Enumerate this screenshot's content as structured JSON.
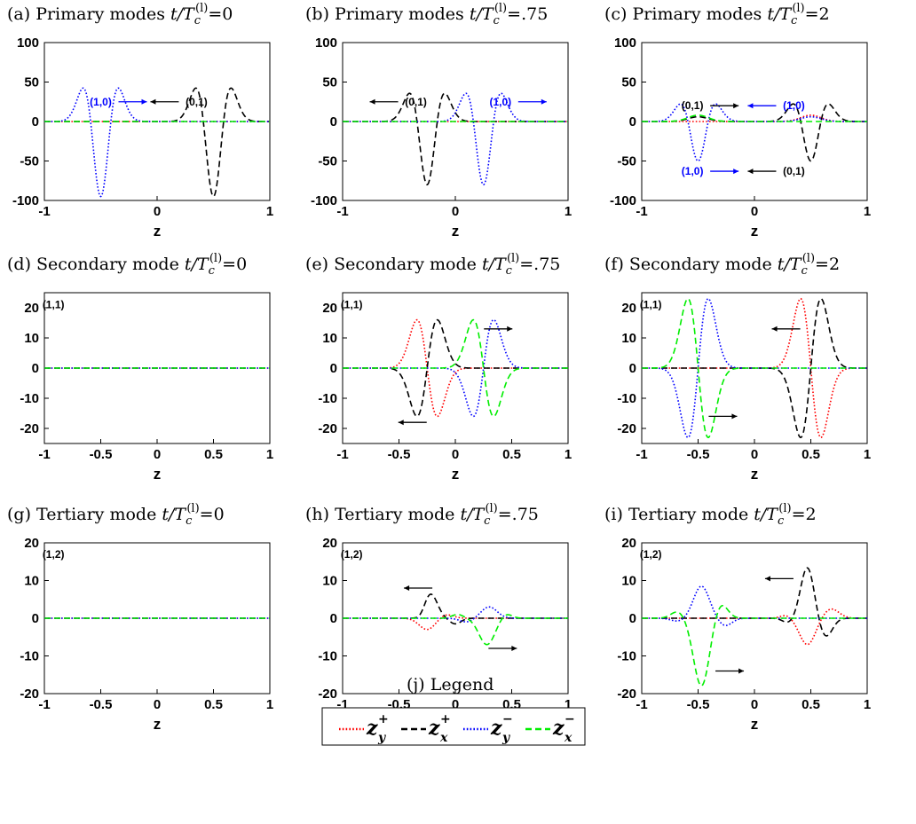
{
  "figure": {
    "legend_title": "(j) Legend"
  },
  "legend": {
    "entries": [
      {
        "symbol": "z",
        "sup": "+",
        "sub": "y",
        "color": "#ff0000",
        "dash": "dotted"
      },
      {
        "symbol": "z",
        "sup": "+",
        "sub": "x",
        "color": "#000000",
        "dash": "dashed"
      },
      {
        "symbol": "z",
        "sup": "−",
        "sub": "y",
        "color": "#0000ff",
        "dash": "dotted"
      },
      {
        "symbol": "z",
        "sup": "−",
        "sub": "x",
        "color": "#00ee00",
        "dash": "dashed"
      }
    ]
  },
  "chart_data": [
    {
      "type": "line",
      "panel": "a",
      "title_prefix": "(a) Primary modes ",
      "title_suffix": "0",
      "xlabel": "z",
      "xlim": [
        -1,
        1
      ],
      "ylim": [
        -100,
        100
      ],
      "xticks": [
        -1,
        0,
        1
      ],
      "xtick_labels": [
        "-1",
        "0",
        "1"
      ],
      "yticks": [
        -100,
        -50,
        0,
        50,
        100
      ],
      "ytick_labels": [
        "-100",
        "-50",
        "0",
        "50",
        "100"
      ],
      "annotations": [
        {
          "text": "(1,0)",
          "x": -0.5,
          "y": 25,
          "color": "#0000ff",
          "arrow": "right"
        },
        {
          "text": "(0,1)",
          "x": 0.35,
          "y": 25,
          "color": "#000000",
          "arrow": "left"
        }
      ],
      "series": [
        {
          "key": "zy_plus",
          "waves": []
        },
        {
          "key": "zx_plus",
          "waves": [
            {
              "center": 0.5,
              "amp": -95,
              "sigma": 0.09,
              "osc": 1
            }
          ]
        },
        {
          "key": "zy_minus",
          "waves": [
            {
              "center": -0.5,
              "amp": -95,
              "sigma": 0.09,
              "osc": 1
            }
          ]
        },
        {
          "key": "zx_minus",
          "waves": []
        }
      ]
    },
    {
      "type": "line",
      "panel": "b",
      "title_prefix": "(b) Primary modes ",
      "title_suffix": ".75",
      "xlabel": "z",
      "xlim": [
        -1,
        1
      ],
      "ylim": [
        -100,
        100
      ],
      "xticks": [
        -1,
        0,
        1
      ],
      "xtick_labels": [
        "-1",
        "0",
        "1"
      ],
      "yticks": [
        -100,
        -50,
        0,
        50,
        100
      ],
      "ytick_labels": [
        "-100",
        "-50",
        "0",
        "50",
        "100"
      ],
      "annotations": [
        {
          "text": "(0,1)",
          "x": -0.35,
          "y": 25,
          "color": "#000000",
          "arrow": "left"
        },
        {
          "text": "(1,0)",
          "x": 0.4,
          "y": 25,
          "color": "#0000ff",
          "arrow": "right"
        }
      ],
      "series": [
        {
          "key": "zy_plus",
          "waves": []
        },
        {
          "key": "zx_plus",
          "waves": [
            {
              "center": -0.25,
              "amp": -80,
              "sigma": 0.09,
              "osc": 1
            }
          ]
        },
        {
          "key": "zy_minus",
          "waves": [
            {
              "center": 0.25,
              "amp": -80,
              "sigma": 0.09,
              "osc": 1
            }
          ]
        },
        {
          "key": "zx_minus",
          "waves": []
        }
      ]
    },
    {
      "type": "line",
      "panel": "c",
      "title_prefix": "(c) Primary modes ",
      "title_suffix": "2",
      "xlabel": "z",
      "xlim": [
        -1,
        1
      ],
      "ylim": [
        -100,
        100
      ],
      "xticks": [
        -1,
        0,
        1
      ],
      "xtick_labels": [
        "-1",
        "0",
        "1"
      ],
      "yticks": [
        -100,
        -50,
        0,
        50,
        100
      ],
      "ytick_labels": [
        "-100",
        "-50",
        "0",
        "50",
        "100"
      ],
      "annotations": [
        {
          "text": "(0,1)",
          "x": -0.55,
          "y": 20,
          "color": "#000000",
          "arrow": "right"
        },
        {
          "text": "(1,0)",
          "x": 0.35,
          "y": 20,
          "color": "#0000ff",
          "arrow": "left"
        },
        {
          "text": "(1,0)",
          "x": -0.55,
          "y": -63,
          "color": "#0000ff",
          "arrow": "right"
        },
        {
          "text": "(0,1)",
          "x": 0.35,
          "y": -63,
          "color": "#000000",
          "arrow": "left"
        }
      ],
      "series": [
        {
          "key": "zy_plus",
          "waves": [
            {
              "center": 0.5,
              "amp": 8,
              "sigma": 0.09,
              "osc": 0
            }
          ]
        },
        {
          "key": "zx_plus",
          "waves": [
            {
              "center": -0.5,
              "amp": 6,
              "sigma": 0.09,
              "osc": 0
            },
            {
              "center": 0.5,
              "amp": -50,
              "sigma": 0.09,
              "osc": 1
            }
          ]
        },
        {
          "key": "zy_minus",
          "waves": [
            {
              "center": -0.5,
              "amp": -50,
              "sigma": 0.09,
              "osc": 1
            },
            {
              "center": 0.5,
              "amp": 6,
              "sigma": 0.09,
              "osc": 0
            }
          ]
        },
        {
          "key": "zx_minus",
          "waves": [
            {
              "center": -0.5,
              "amp": 8,
              "sigma": 0.09,
              "osc": 0
            }
          ]
        }
      ]
    },
    {
      "type": "line",
      "panel": "d",
      "title_prefix": "(d) Secondary mode ",
      "title_suffix": "0",
      "xlabel": "z",
      "xlim": [
        -1,
        1
      ],
      "ylim": [
        -25,
        25
      ],
      "xticks": [
        -1,
        -0.5,
        0,
        0.5,
        1
      ],
      "xtick_labels": [
        "-1",
        "-0.5",
        "0",
        "0.5",
        "1"
      ],
      "yticks": [
        -20,
        -10,
        0,
        10,
        20
      ],
      "ytick_labels": [
        "-20",
        "-10",
        "0",
        "10",
        "20"
      ],
      "annotations": [
        {
          "text": "(1,1)",
          "x": -0.92,
          "y": 21,
          "color": "#000000",
          "arrow": "none"
        }
      ],
      "series": [
        {
          "key": "zy_plus",
          "waves": []
        },
        {
          "key": "zx_plus",
          "waves": []
        },
        {
          "key": "zy_minus",
          "waves": []
        },
        {
          "key": "zx_minus",
          "waves": []
        }
      ]
    },
    {
      "type": "line",
      "panel": "e",
      "title_prefix": "(e) Secondary mode ",
      "title_suffix": ".75",
      "xlabel": "z",
      "xlim": [
        -1,
        1
      ],
      "ylim": [
        -25,
        25
      ],
      "xticks": [
        -1,
        -0.5,
        0,
        0.5,
        1
      ],
      "xtick_labels": [
        "-1",
        "-0.5",
        "0",
        "0.5",
        "1"
      ],
      "yticks": [
        -20,
        -10,
        0,
        10,
        20
      ],
      "ytick_labels": [
        "-20",
        "-10",
        "0",
        "10",
        "20"
      ],
      "annotations": [
        {
          "text": "(1,1)",
          "x": -0.92,
          "y": 21,
          "color": "#000000",
          "arrow": "none"
        },
        {
          "text": "",
          "x": 0.38,
          "y": 13,
          "color": "#000000",
          "arrow": "right"
        },
        {
          "text": "",
          "x": -0.38,
          "y": -18,
          "color": "#000000",
          "arrow": "left"
        }
      ],
      "series": [
        {
          "key": "zy_plus",
          "waves": [
            {
              "center": -0.25,
              "amp": -16,
              "sigma": 0.09,
              "osc": -1
            }
          ]
        },
        {
          "key": "zx_plus",
          "waves": [
            {
              "center": -0.25,
              "amp": 16,
              "sigma": 0.09,
              "osc": -1
            }
          ]
        },
        {
          "key": "zy_minus",
          "waves": [
            {
              "center": 0.25,
              "amp": 16,
              "sigma": 0.09,
              "osc": 1
            }
          ]
        },
        {
          "key": "zx_minus",
          "waves": [
            {
              "center": 0.25,
              "amp": -16,
              "sigma": 0.09,
              "osc": 1
            }
          ]
        }
      ]
    },
    {
      "type": "line",
      "panel": "f",
      "title_prefix": "(f) Secondary mode ",
      "title_suffix": "2",
      "xlabel": "z",
      "xlim": [
        -1,
        1
      ],
      "ylim": [
        -25,
        25
      ],
      "xticks": [
        -1,
        -0.5,
        0,
        0.5,
        1
      ],
      "xtick_labels": [
        "-1",
        "-0.5",
        "0",
        "0.5",
        "1"
      ],
      "yticks": [
        -20,
        -10,
        0,
        10,
        20
      ],
      "ytick_labels": [
        "-20",
        "-10",
        "0",
        "10",
        "20"
      ],
      "annotations": [
        {
          "text": "(1,1)",
          "x": -0.92,
          "y": 21,
          "color": "#000000",
          "arrow": "none"
        },
        {
          "text": "",
          "x": 0.28,
          "y": 13,
          "color": "#000000",
          "arrow": "left"
        },
        {
          "text": "",
          "x": -0.28,
          "y": -16,
          "color": "#000000",
          "arrow": "right"
        }
      ],
      "series": [
        {
          "key": "zy_plus",
          "waves": [
            {
              "center": 0.5,
              "amp": -23,
              "sigma": 0.09,
              "osc": -1
            }
          ]
        },
        {
          "key": "zx_plus",
          "waves": [
            {
              "center": 0.5,
              "amp": 23,
              "sigma": 0.09,
              "osc": -1
            }
          ]
        },
        {
          "key": "zy_minus",
          "waves": [
            {
              "center": -0.5,
              "amp": 23,
              "sigma": 0.09,
              "osc": 1
            }
          ]
        },
        {
          "key": "zx_minus",
          "waves": [
            {
              "center": -0.5,
              "amp": -23,
              "sigma": 0.09,
              "osc": 1
            }
          ]
        }
      ]
    },
    {
      "type": "line",
      "panel": "g",
      "title_prefix": "(g) Tertiary mode ",
      "title_suffix": "0",
      "xlabel": "z",
      "xlim": [
        -1,
        1
      ],
      "ylim": [
        -20,
        20
      ],
      "xticks": [
        -1,
        -0.5,
        0,
        0.5,
        1
      ],
      "xtick_labels": [
        "-1",
        "-0.5",
        "0",
        "0.5",
        "1"
      ],
      "yticks": [
        -20,
        -10,
        0,
        10,
        20
      ],
      "ytick_labels": [
        "-20",
        "-10",
        "0",
        "10",
        "20"
      ],
      "annotations": [
        {
          "text": "(1,2)",
          "x": -0.92,
          "y": 17,
          "color": "#000000",
          "arrow": "none"
        }
      ],
      "series": [
        {
          "key": "zy_plus",
          "waves": []
        },
        {
          "key": "zx_plus",
          "waves": []
        },
        {
          "key": "zy_minus",
          "waves": []
        },
        {
          "key": "zx_minus",
          "waves": []
        }
      ]
    },
    {
      "type": "line",
      "panel": "h",
      "title_prefix": "(h) Tertiary mode ",
      "title_suffix": ".75",
      "xlabel": "z",
      "xlim": [
        -1,
        1
      ],
      "ylim": [
        -20,
        20
      ],
      "xticks": [
        -1,
        -0.5,
        0,
        0.5,
        1
      ],
      "xtick_labels": [
        "-1",
        "-0.5",
        "0",
        "0.5",
        "1"
      ],
      "yticks": [
        -20,
        -10,
        0,
        10,
        20
      ],
      "ytick_labels": [
        "-20",
        "-10",
        "0",
        "10",
        "20"
      ],
      "annotations": [
        {
          "text": "(1,2)",
          "x": -0.92,
          "y": 17,
          "color": "#000000",
          "arrow": "none"
        },
        {
          "text": "",
          "x": -0.33,
          "y": 8,
          "color": "#000000",
          "arrow": "left"
        },
        {
          "text": "",
          "x": 0.42,
          "y": -8,
          "color": "#000000",
          "arrow": "right"
        }
      ],
      "series": [
        {
          "key": "zy_plus",
          "waves": [
            {
              "center": -0.25,
              "amp": -3,
              "sigma": 0.07,
              "osc": 0
            },
            {
              "center": -0.08,
              "amp": 1,
              "sigma": 0.06,
              "osc": 0
            }
          ]
        },
        {
          "key": "zx_plus",
          "waves": [
            {
              "center": -0.22,
              "amp": 6.5,
              "sigma": 0.06,
              "osc": 0
            },
            {
              "center": -0.3,
              "amp": -1,
              "sigma": 0.04,
              "osc": 0
            },
            {
              "center": 0,
              "amp": -1.5,
              "sigma": 0.05,
              "osc": 0
            }
          ]
        },
        {
          "key": "zy_minus",
          "waves": [
            {
              "center": 0.3,
              "amp": 3,
              "sigma": 0.07,
              "osc": 0
            },
            {
              "center": 0.1,
              "amp": -1,
              "sigma": 0.06,
              "osc": 0
            }
          ]
        },
        {
          "key": "zx_minus",
          "waves": [
            {
              "center": 0.28,
              "amp": -7,
              "sigma": 0.07,
              "osc": 0
            },
            {
              "center": 0.02,
              "amp": 1,
              "sigma": 0.05,
              "osc": 0
            },
            {
              "center": 0.45,
              "amp": 1.2,
              "sigma": 0.05,
              "osc": 0
            }
          ]
        }
      ]
    },
    {
      "type": "line",
      "panel": "i",
      "title_prefix": "(i) Tertiary mode ",
      "title_suffix": "2",
      "xlabel": "z",
      "xlim": [
        -1,
        1
      ],
      "ylim": [
        -20,
        20
      ],
      "xticks": [
        -1,
        -0.5,
        0,
        0.5,
        1
      ],
      "xtick_labels": [
        "-1",
        "-0.5",
        "0",
        "0.5",
        "1"
      ],
      "yticks": [
        -20,
        -10,
        0,
        10,
        20
      ],
      "ytick_labels": [
        "-20",
        "-10",
        "0",
        "10",
        "20"
      ],
      "annotations": [
        {
          "text": "(1,2)",
          "x": -0.92,
          "y": 17,
          "color": "#000000",
          "arrow": "none"
        },
        {
          "text": "",
          "x": 0.22,
          "y": 10.5,
          "color": "#000000",
          "arrow": "left"
        },
        {
          "text": "",
          "x": -0.22,
          "y": -14,
          "color": "#000000",
          "arrow": "right"
        }
      ],
      "series": [
        {
          "key": "zy_plus",
          "waves": [
            {
              "center": 0.47,
              "amp": -7,
              "sigma": 0.07,
              "osc": 0
            },
            {
              "center": 0.68,
              "amp": 2.5,
              "sigma": 0.07,
              "osc": 0
            },
            {
              "center": 0.28,
              "amp": 0.8,
              "sigma": 0.05,
              "osc": 0
            }
          ]
        },
        {
          "key": "zx_plus",
          "waves": [
            {
              "center": 0.47,
              "amp": 13.5,
              "sigma": 0.06,
              "osc": 0
            },
            {
              "center": 0.63,
              "amp": -5,
              "sigma": 0.06,
              "osc": 0
            },
            {
              "center": 0.3,
              "amp": -1.2,
              "sigma": 0.05,
              "osc": 0
            }
          ]
        },
        {
          "key": "zy_minus",
          "waves": [
            {
              "center": -0.47,
              "amp": 8.5,
              "sigma": 0.07,
              "osc": 0
            },
            {
              "center": -0.26,
              "amp": -2,
              "sigma": 0.06,
              "osc": 0
            },
            {
              "center": -0.68,
              "amp": -0.8,
              "sigma": 0.06,
              "osc": 0
            }
          ]
        },
        {
          "key": "zx_minus",
          "waves": [
            {
              "center": -0.47,
              "amp": -18,
              "sigma": 0.07,
              "osc": 0
            },
            {
              "center": -0.3,
              "amp": 4,
              "sigma": 0.06,
              "osc": 0
            },
            {
              "center": -0.68,
              "amp": 1.8,
              "sigma": 0.06,
              "osc": 0
            }
          ]
        }
      ]
    }
  ]
}
